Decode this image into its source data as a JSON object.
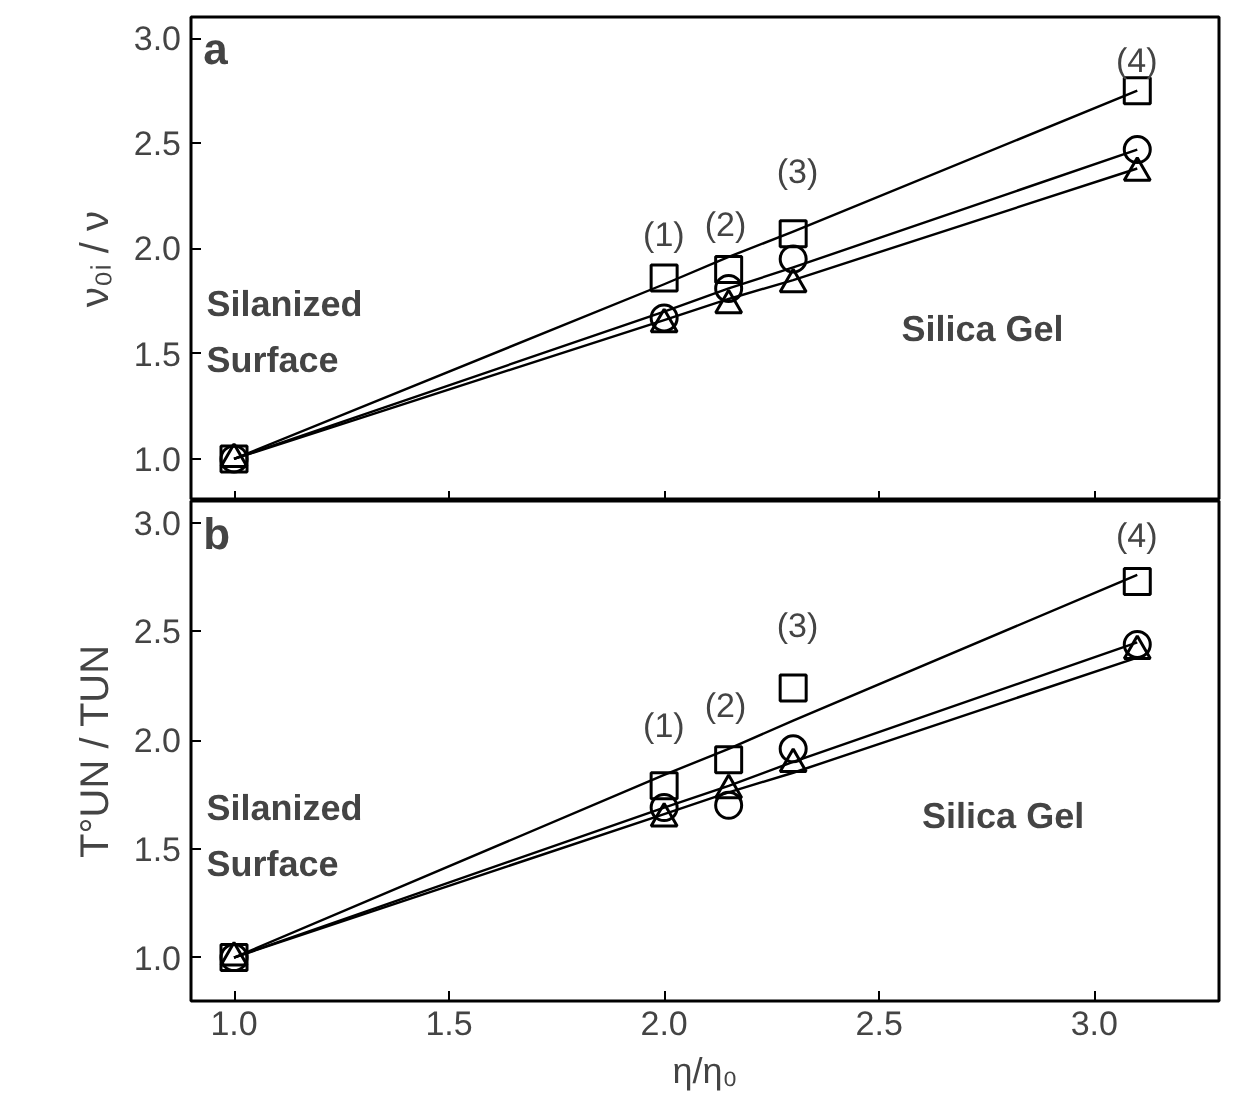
{
  "chart_data": [
    {
      "type": "scatter",
      "title": "a",
      "ylabel": "ν₀ᵢ / ν",
      "x": [
        1.0,
        2.0,
        2.15,
        2.3,
        3.1
      ],
      "series": [
        {
          "color": "#000000",
          "marker": "square",
          "values": [
            1.0,
            1.86,
            1.9,
            2.07,
            2.75
          ]
        },
        {
          "color": "#000000",
          "marker": "circle",
          "values": [
            1.0,
            1.67,
            1.81,
            1.95,
            2.47
          ]
        },
        {
          "color": "#000000",
          "marker": "triangle",
          "values": [
            1.0,
            1.64,
            1.73,
            1.83,
            2.36
          ]
        },
        {
          "type": "line",
          "color": "#000000",
          "marker": "none",
          "values": [
            1.0,
            1.83,
            1.96,
            2.08,
            2.75
          ]
        },
        {
          "type": "line",
          "color": "#000000",
          "marker": "none",
          "values": [
            1.0,
            1.7,
            1.81,
            1.91,
            2.47
          ]
        },
        {
          "type": "line",
          "color": "#000000",
          "marker": "none",
          "values": [
            1.0,
            1.66,
            1.76,
            1.85,
            2.38
          ]
        }
      ],
      "xlim": [
        0.9,
        3.29
      ],
      "ylim": [
        0.8,
        3.1
      ],
      "xticks": [
        {
          "value": 1.0,
          "label": null
        },
        {
          "value": 1.5,
          "label": null
        },
        {
          "value": 2.0,
          "label": null
        },
        {
          "value": 2.5,
          "label": null
        },
        {
          "value": 3.0,
          "label": null
        }
      ],
      "yticks": [
        {
          "value": 1.0,
          "label": "1.0"
        },
        {
          "value": 1.5,
          "label": "1.5"
        },
        {
          "value": 2.0,
          "label": "2.0"
        },
        {
          "value": 2.5,
          "label": "2.5"
        },
        {
          "value": 3.0,
          "label": "3.0"
        }
      ],
      "tick_labels": "y",
      "grid": false,
      "annotations": [
        "(1)",
        "(2)",
        "(3)",
        "(4)",
        "Silanized\nSurface",
        "Silica Gel"
      ]
    },
    {
      "type": "scatter",
      "title": "b",
      "xlabel": "η/η₀",
      "ylabel": "T°UN / TUN",
      "x": [
        1.0,
        2.0,
        2.15,
        2.3,
        3.1
      ],
      "series": [
        {
          "color": "#000000",
          "marker": "square",
          "values": [
            1.0,
            1.79,
            1.91,
            2.24,
            2.73
          ]
        },
        {
          "color": "#000000",
          "marker": "circle",
          "values": [
            1.0,
            1.69,
            1.7,
            1.96,
            2.44
          ]
        },
        {
          "color": "#000000",
          "marker": "triangle",
          "values": [
            1.0,
            1.64,
            1.77,
            1.89,
            2.41
          ]
        },
        {
          "type": "line",
          "color": "#000000",
          "marker": "none",
          "values": [
            1.0,
            1.84,
            1.96,
            2.09,
            2.76
          ]
        },
        {
          "type": "line",
          "color": "#000000",
          "marker": "none",
          "values": [
            1.0,
            1.69,
            1.79,
            1.9,
            2.45
          ]
        },
        {
          "type": "line",
          "color": "#000000",
          "marker": "none",
          "values": [
            1.0,
            1.66,
            1.76,
            1.85,
            2.38
          ]
        }
      ],
      "xlim": [
        0.9,
        3.29
      ],
      "ylim": [
        0.8,
        3.1
      ],
      "xticks": [
        {
          "value": 1.0,
          "label": "1.0"
        },
        {
          "value": 1.5,
          "label": "1.5"
        },
        {
          "value": 2.0,
          "label": "2.0"
        },
        {
          "value": 2.5,
          "label": "2.5"
        },
        {
          "value": 3.0,
          "label": "3.0"
        }
      ],
      "yticks": [
        {
          "value": 1.0,
          "label": "1.0"
        },
        {
          "value": 1.5,
          "label": "1.5"
        },
        {
          "value": 2.0,
          "label": "2.0"
        },
        {
          "value": 2.5,
          "label": "2.5"
        },
        {
          "value": 3.0,
          "label": "3.0"
        }
      ],
      "grid": false,
      "annotations": [
        "(1)",
        "(2)",
        "(3)",
        "(4)",
        "Silanized\nSurface",
        "Silica Gel"
      ]
    }
  ]
}
